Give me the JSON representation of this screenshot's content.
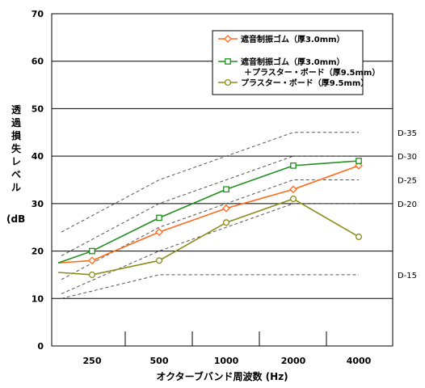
{
  "chart_data": {
    "type": "line",
    "xlabel": "オクターブバンド周波数 (Hz)",
    "ylabel": "透過損失レベル",
    "yunit": "(dB",
    "categories": [
      "250",
      "500",
      "1000",
      "2000",
      "4000"
    ],
    "ylim": [
      0,
      70
    ],
    "yticks": [
      "0",
      "10",
      "20",
      "30",
      "40",
      "50",
      "60",
      "70"
    ],
    "grid": "horizontal",
    "legend_position": "top-right",
    "series": [
      {
        "name": "遮音制振ゴム（厚3.0mm）",
        "color": "#ff6a1a",
        "marker": "diamond",
        "x_start": 17.5,
        "values": [
          18,
          24,
          29,
          33,
          38
        ]
      },
      {
        "name": "遮音制振ゴム（厚3.0mm）",
        "name2": "＋プラスター・ボード（厚9.5mm）",
        "color": "#1f8f1f",
        "marker": "square",
        "x_start": 17.5,
        "values": [
          20,
          27,
          33,
          38,
          39
        ]
      },
      {
        "name": "プラスター・ボード（厚9.5mm）",
        "color": "#8c8c1a",
        "marker": "circle",
        "x_start": 15.5,
        "values": [
          15,
          18,
          26,
          31,
          23
        ]
      }
    ],
    "d_curves": [
      {
        "label": "D-35",
        "values": [
          null,
          35,
          40,
          45,
          45
        ],
        "start": 24,
        "end": 45
      },
      {
        "label": "D-30",
        "values": [
          null,
          30,
          35,
          40,
          40
        ],
        "start": 19,
        "end": 40
      },
      {
        "label": "D-25",
        "values": [
          null,
          25,
          30,
          35,
          35
        ],
        "start": 14,
        "end": 35
      },
      {
        "label": "D-20",
        "values": [
          null,
          20,
          25,
          30,
          30
        ],
        "start": 11,
        "end": 30
      },
      {
        "label": "D-15",
        "values": [
          null,
          15,
          15,
          15,
          15
        ],
        "start": 10,
        "end": 15
      }
    ]
  }
}
